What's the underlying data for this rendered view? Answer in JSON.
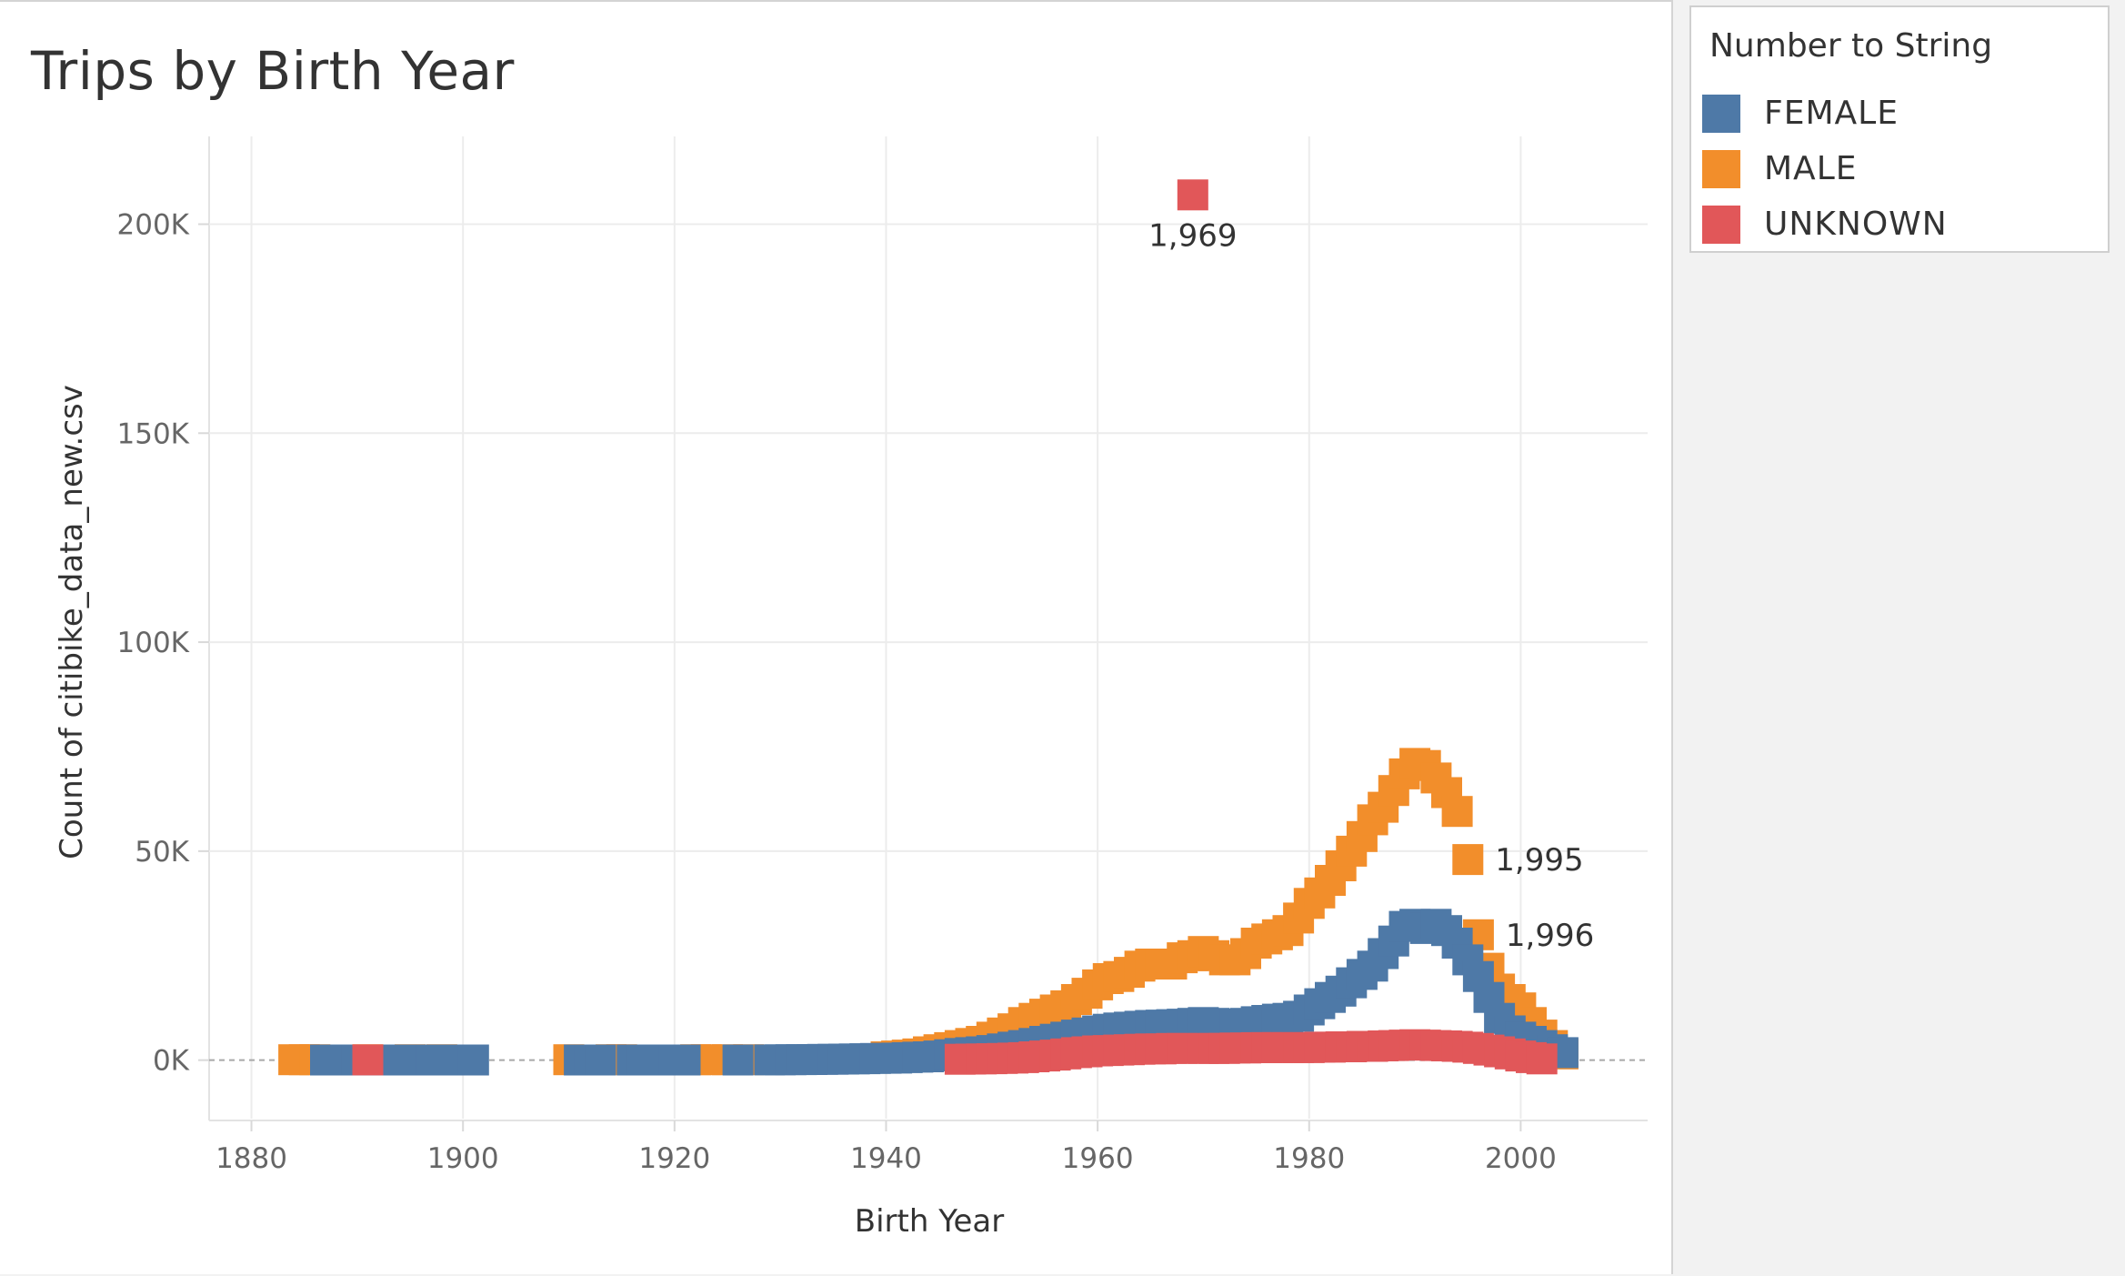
{
  "chart_data": {
    "type": "scatter",
    "title": "Trips by Birth Year",
    "xlabel": "Birth Year",
    "ylabel": "Count of citibike_data_new.csv",
    "xlim": [
      1876,
      2012
    ],
    "ylim": [
      -14000,
      221000
    ],
    "xticks": [
      1880,
      1900,
      1920,
      1940,
      1960,
      1980,
      2000
    ],
    "yticks": [
      0,
      50000,
      100000,
      150000,
      200000
    ],
    "ytick_labels": [
      "0K",
      "50K",
      "100K",
      "150K",
      "200K"
    ],
    "grid": true,
    "legend_title": "Number to String",
    "legend_position": "right",
    "series": [
      {
        "name": "FEMALE",
        "color": "#4e79a7",
        "x": [
          1887,
          1888,
          1889,
          1890,
          1892,
          1893,
          1894,
          1896,
          1897,
          1899,
          1900,
          1901,
          1911,
          1912,
          1913,
          1916,
          1917,
          1918,
          1919,
          1920,
          1921,
          1926,
          1929,
          1930,
          1931,
          1932,
          1933,
          1934,
          1935,
          1936,
          1937,
          1938,
          1939,
          1940,
          1941,
          1942,
          1943,
          1944,
          1945,
          1946,
          1947,
          1948,
          1949,
          1950,
          1951,
          1952,
          1953,
          1954,
          1955,
          1956,
          1957,
          1958,
          1959,
          1960,
          1961,
          1962,
          1963,
          1964,
          1965,
          1966,
          1967,
          1968,
          1969,
          1970,
          1971,
          1972,
          1973,
          1974,
          1975,
          1976,
          1977,
          1978,
          1979,
          1980,
          1981,
          1982,
          1983,
          1984,
          1985,
          1986,
          1987,
          1988,
          1989,
          1990,
          1991,
          1992,
          1993,
          1994,
          1995,
          1996,
          1997,
          1998,
          1999,
          2000,
          2001,
          2002,
          2003,
          2004
        ],
        "y": [
          30,
          30,
          30,
          30,
          30,
          30,
          30,
          30,
          30,
          30,
          30,
          30,
          40,
          40,
          40,
          40,
          40,
          40,
          40,
          40,
          40,
          40,
          60,
          80,
          100,
          120,
          150,
          180,
          200,
          250,
          300,
          350,
          400,
          450,
          500,
          600,
          700,
          800,
          1000,
          1300,
          1600,
          1800,
          2000,
          2300,
          2700,
          3100,
          3500,
          4000,
          4500,
          5000,
          5500,
          6000,
          6500,
          7000,
          7400,
          7700,
          7900,
          8100,
          8300,
          8400,
          8500,
          8600,
          8800,
          9000,
          8800,
          8700,
          8500,
          8800,
          9200,
          9500,
          9800,
          10000,
          10500,
          12000,
          13500,
          15000,
          16500,
          18500,
          20500,
          22500,
          25500,
          28500,
          32000,
          32500,
          31500,
          32500,
          31000,
          28000,
          24000,
          20000,
          15000,
          10000,
          7000,
          5500,
          4500,
          3500,
          2500,
          1800
        ]
      },
      {
        "name": "MALE",
        "color": "#f28e2b",
        "x": [
          1884,
          1885,
          1886,
          1891,
          1895,
          1898,
          1910,
          1914,
          1915,
          1922,
          1923,
          1925,
          1927,
          1940,
          1941,
          1942,
          1943,
          1944,
          1945,
          1946,
          1947,
          1948,
          1949,
          1950,
          1951,
          1952,
          1953,
          1954,
          1955,
          1956,
          1957,
          1958,
          1959,
          1960,
          1961,
          1962,
          1963,
          1964,
          1965,
          1966,
          1967,
          1968,
          1969,
          1970,
          1971,
          1972,
          1973,
          1974,
          1975,
          1976,
          1977,
          1978,
          1979,
          1980,
          1981,
          1982,
          1983,
          1984,
          1985,
          1986,
          1987,
          1988,
          1989,
          1990,
          1991,
          1992,
          1993,
          1994,
          1995,
          1996,
          1997,
          1998,
          1999,
          2000,
          2001,
          2002,
          2003,
          2004
        ],
        "y": [
          100,
          100,
          100,
          100,
          100,
          100,
          100,
          100,
          100,
          100,
          100,
          100,
          100,
          800,
          1000,
          1200,
          1500,
          2000,
          2500,
          3000,
          3500,
          4000,
          4500,
          5500,
          6500,
          7500,
          9000,
          10000,
          11000,
          12000,
          13000,
          14500,
          16000,
          18000,
          19500,
          20000,
          21000,
          22500,
          23000,
          23000,
          23000,
          24500,
          25000,
          26000,
          25000,
          24000,
          24000,
          25500,
          28000,
          29000,
          30000,
          31000,
          34000,
          37500,
          40000,
          43000,
          46500,
          50000,
          53500,
          57500,
          60500,
          64500,
          68500,
          71000,
          70500,
          67500,
          64000,
          59500,
          48000,
          30000,
          22000,
          17000,
          14500,
          12500,
          9000,
          6000,
          3500,
          1500
        ]
      },
      {
        "name": "UNKNOWN",
        "color": "#e15759",
        "x": [
          1891,
          1947,
          1948,
          1949,
          1950,
          1951,
          1952,
          1953,
          1954,
          1955,
          1956,
          1957,
          1958,
          1959,
          1960,
          1961,
          1962,
          1963,
          1964,
          1965,
          1966,
          1967,
          1968,
          1969,
          1970,
          1971,
          1972,
          1973,
          1974,
          1975,
          1976,
          1977,
          1978,
          1979,
          1980,
          1981,
          1982,
          1983,
          1984,
          1985,
          1986,
          1987,
          1988,
          1989,
          1990,
          1991,
          1992,
          1993,
          1994,
          1995,
          1996,
          1997,
          1998,
          1999,
          2000,
          2001,
          2002
        ],
        "y": [
          50,
          200,
          250,
          300,
          350,
          400,
          500,
          600,
          800,
          1000,
          1200,
          1500,
          1800,
          2000,
          2200,
          2300,
          2400,
          2500,
          2600,
          2700,
          2700,
          2800,
          2800,
          207000,
          2800,
          2800,
          2800,
          2900,
          2900,
          3000,
          3000,
          3000,
          3000,
          3000,
          3000,
          3100,
          3100,
          3200,
          3200,
          3300,
          3300,
          3400,
          3500,
          3600,
          3700,
          3600,
          3500,
          3400,
          3300,
          3100,
          2800,
          2400,
          2000,
          1500,
          1000,
          600,
          300
        ]
      }
    ],
    "annotations": [
      {
        "text": "1,969",
        "x": 1969,
        "y": 207000,
        "series": "UNKNOWN",
        "position": "below"
      },
      {
        "text": "1,995",
        "x": 1995,
        "y": 48000,
        "series": "MALE",
        "position": "right"
      },
      {
        "text": "1,996",
        "x": 1996,
        "y": 30000,
        "series": "MALE",
        "position": "right"
      }
    ]
  }
}
